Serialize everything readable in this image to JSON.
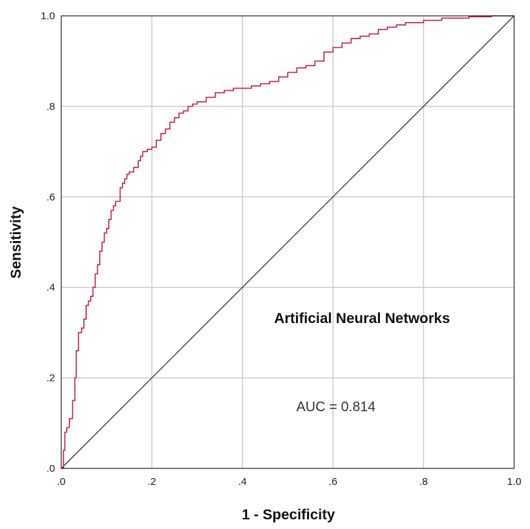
{
  "chart_data": {
    "type": "line",
    "title": "",
    "xlabel": "1 - Specificity",
    "ylabel": "Sensitivity",
    "xlim": [
      0,
      1
    ],
    "ylim": [
      0,
      1
    ],
    "x_tick_labels": [
      ".0",
      ".2",
      ".4",
      ".6",
      ".8",
      "1.0"
    ],
    "y_tick_labels": [
      ".0",
      ".2",
      ".4",
      ".6",
      ".8",
      "1.0"
    ],
    "x_ticks": [
      0,
      0.2,
      0.4,
      0.6,
      0.8,
      1.0
    ],
    "y_ticks": [
      0,
      0.2,
      0.4,
      0.6,
      0.8,
      1.0
    ],
    "grid": true,
    "annotations": [
      "Artificial Neural Networks",
      "AUC = 0.814"
    ],
    "series": [
      {
        "color": "#c8204a",
        "x": [
          0,
          0.005,
          0.008,
          0.012,
          0.018,
          0.025,
          0.03,
          0.033,
          0.038,
          0.04,
          0.045,
          0.05,
          0.055,
          0.06,
          0.065,
          0.07,
          0.075,
          0.08,
          0.085,
          0.09,
          0.095,
          0.1,
          0.105,
          0.11,
          0.115,
          0.12,
          0.13,
          0.135,
          0.14,
          0.145,
          0.15,
          0.16,
          0.17,
          0.175,
          0.18,
          0.19,
          0.2,
          0.21,
          0.22,
          0.23,
          0.24,
          0.25,
          0.26,
          0.27,
          0.28,
          0.29,
          0.3,
          0.32,
          0.34,
          0.36,
          0.38,
          0.4,
          0.42,
          0.44,
          0.46,
          0.48,
          0.5,
          0.52,
          0.54,
          0.56,
          0.58,
          0.6,
          0.62,
          0.64,
          0.66,
          0.68,
          0.7,
          0.72,
          0.74,
          0.76,
          0.8,
          0.84,
          0.86,
          0.9,
          0.95,
          1.0
        ],
        "y": [
          0,
          0.04,
          0.08,
          0.09,
          0.11,
          0.15,
          0.2,
          0.26,
          0.3,
          0.3,
          0.31,
          0.33,
          0.36,
          0.37,
          0.38,
          0.4,
          0.43,
          0.45,
          0.48,
          0.5,
          0.52,
          0.53,
          0.55,
          0.57,
          0.58,
          0.59,
          0.62,
          0.63,
          0.64,
          0.65,
          0.655,
          0.665,
          0.68,
          0.69,
          0.7,
          0.705,
          0.71,
          0.725,
          0.74,
          0.75,
          0.765,
          0.775,
          0.785,
          0.79,
          0.8,
          0.805,
          0.81,
          0.82,
          0.83,
          0.835,
          0.84,
          0.84,
          0.845,
          0.85,
          0.855,
          0.865,
          0.875,
          0.885,
          0.89,
          0.9,
          0.92,
          0.93,
          0.94,
          0.95,
          0.955,
          0.96,
          0.97,
          0.975,
          0.98,
          0.985,
          0.99,
          0.995,
          0.995,
          0.998,
          1.0,
          1.0
        ]
      }
    ],
    "reference_line": {
      "x": [
        0,
        1
      ],
      "y": [
        0,
        1
      ],
      "color": "#333333"
    },
    "colors": {
      "gridline": "#cccccc",
      "frame": "#222222"
    }
  }
}
